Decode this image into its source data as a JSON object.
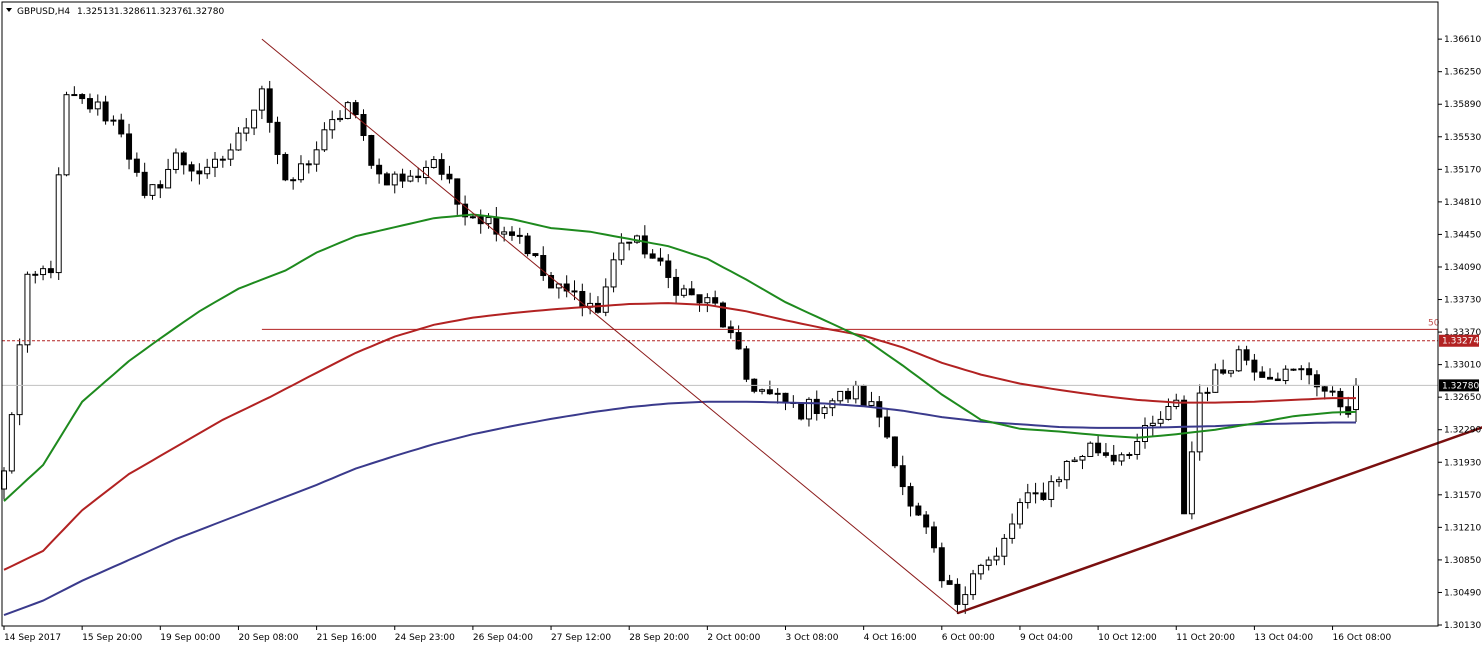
{
  "header": {
    "symbol": "GBPUSD,H4",
    "open": "1.32513",
    "high": "1.32861",
    "low": "1.32376",
    "close": "1.32780"
  },
  "colors": {
    "background": "#ffffff",
    "bull_candle_fill": "#ffffff",
    "bear_candle_fill": "#000000",
    "ema_fast": "#1e8a1e",
    "ema_mid": "#b22222",
    "ema_slow": "#3a3a8c",
    "fibo_line": "#8b1a1a",
    "trendline": "#7a0f0f",
    "level_line": "#b22222",
    "current_price_line": "#c0c0c0",
    "price_tag_bg": "#000000"
  },
  "chart_data": {
    "type": "candlestick",
    "symbol": "GBPUSD",
    "timeframe": "H4",
    "ylim": [
      1.3,
      1.369
    ],
    "grid": false,
    "y_ticks": [
      "1.36610",
      "1.36250",
      "1.35890",
      "1.35530",
      "1.35170",
      "1.34810",
      "1.34450",
      "1.34090",
      "1.33730",
      "1.33370",
      "1.33010",
      "1.32650",
      "1.32290",
      "1.31930",
      "1.31570",
      "1.31210",
      "1.30850",
      "1.30490",
      "1.30130"
    ],
    "x_ticks": [
      {
        "label": "14 Sep 2017",
        "index": 0
      },
      {
        "label": "15 Sep 20:00",
        "index": 10
      },
      {
        "label": "19 Sep 00:00",
        "index": 20
      },
      {
        "label": "20 Sep 08:00",
        "index": 30
      },
      {
        "label": "21 Sep 16:00",
        "index": 40
      },
      {
        "label": "24 Sep 23:00",
        "index": 50
      },
      {
        "label": "26 Sep 04:00",
        "index": 60
      },
      {
        "label": "27 Sep 12:00",
        "index": 70
      },
      {
        "label": "28 Sep 20:00",
        "index": 80
      },
      {
        "label": "2 Oct 00:00",
        "index": 90
      },
      {
        "label": "3 Oct 08:00",
        "index": 100
      },
      {
        "label": "4 Oct 16:00",
        "index": 110
      },
      {
        "label": "6 Oct 00:00",
        "index": 120
      },
      {
        "label": "9 Oct 04:00",
        "index": 130
      },
      {
        "label": "10 Oct 12:00",
        "index": 140
      },
      {
        "label": "11 Oct 20:00",
        "index": 150
      },
      {
        "label": "13 Oct 04:00",
        "index": 160
      },
      {
        "label": "16 Oct 08:00",
        "index": 170
      }
    ],
    "current_price": 1.3278,
    "current_price_label": "1.32780",
    "level_price": 1.33274,
    "level_label": "1.33274",
    "fibo_label": "50",
    "fibo_level": 1.334,
    "fibo_line": [
      {
        "i": 33,
        "p": 1.3661
      },
      {
        "i": 122,
        "p": 1.3027
      }
    ],
    "trendline": [
      {
        "i": 122,
        "p": 1.3026
      },
      {
        "i": 203,
        "p": 1.3274
      }
    ],
    "ema_fast": [
      {
        "i": 0,
        "p": 1.315
      },
      {
        "i": 5,
        "p": 1.319
      },
      {
        "i": 10,
        "p": 1.326
      },
      {
        "i": 16,
        "p": 1.3305
      },
      {
        "i": 20,
        "p": 1.333
      },
      {
        "i": 25,
        "p": 1.336
      },
      {
        "i": 30,
        "p": 1.3385
      },
      {
        "i": 36,
        "p": 1.3405
      },
      {
        "i": 40,
        "p": 1.3425
      },
      {
        "i": 45,
        "p": 1.3443
      },
      {
        "i": 50,
        "p": 1.3453
      },
      {
        "i": 55,
        "p": 1.3463
      },
      {
        "i": 60,
        "p": 1.3467
      },
      {
        "i": 65,
        "p": 1.3462
      },
      {
        "i": 70,
        "p": 1.3452
      },
      {
        "i": 75,
        "p": 1.3448
      },
      {
        "i": 80,
        "p": 1.344
      },
      {
        "i": 85,
        "p": 1.3432
      },
      {
        "i": 90,
        "p": 1.3418
      },
      {
        "i": 95,
        "p": 1.3395
      },
      {
        "i": 100,
        "p": 1.337
      },
      {
        "i": 105,
        "p": 1.335
      },
      {
        "i": 110,
        "p": 1.333
      },
      {
        "i": 115,
        "p": 1.33
      },
      {
        "i": 120,
        "p": 1.3268
      },
      {
        "i": 125,
        "p": 1.324
      },
      {
        "i": 130,
        "p": 1.323
      },
      {
        "i": 135,
        "p": 1.3227
      },
      {
        "i": 140,
        "p": 1.3223
      },
      {
        "i": 145,
        "p": 1.322
      },
      {
        "i": 150,
        "p": 1.3224
      },
      {
        "i": 155,
        "p": 1.3229
      },
      {
        "i": 160,
        "p": 1.3236
      },
      {
        "i": 165,
        "p": 1.3244
      },
      {
        "i": 170,
        "p": 1.3248
      },
      {
        "i": 174,
        "p": 1.3249
      }
    ],
    "ema_mid": [
      {
        "i": 0,
        "p": 1.3074
      },
      {
        "i": 5,
        "p": 1.3095
      },
      {
        "i": 10,
        "p": 1.314
      },
      {
        "i": 16,
        "p": 1.318
      },
      {
        "i": 22,
        "p": 1.321
      },
      {
        "i": 28,
        "p": 1.324
      },
      {
        "i": 34,
        "p": 1.3265
      },
      {
        "i": 40,
        "p": 1.3292
      },
      {
        "i": 45,
        "p": 1.3314
      },
      {
        "i": 50,
        "p": 1.3332
      },
      {
        "i": 55,
        "p": 1.3345
      },
      {
        "i": 60,
        "p": 1.3353
      },
      {
        "i": 65,
        "p": 1.3358
      },
      {
        "i": 70,
        "p": 1.3362
      },
      {
        "i": 75,
        "p": 1.3365
      },
      {
        "i": 80,
        "p": 1.3368
      },
      {
        "i": 85,
        "p": 1.3369
      },
      {
        "i": 90,
        "p": 1.3367
      },
      {
        "i": 95,
        "p": 1.336
      },
      {
        "i": 100,
        "p": 1.335
      },
      {
        "i": 105,
        "p": 1.3341
      },
      {
        "i": 110,
        "p": 1.3333
      },
      {
        "i": 115,
        "p": 1.332
      },
      {
        "i": 120,
        "p": 1.3303
      },
      {
        "i": 125,
        "p": 1.329
      },
      {
        "i": 130,
        "p": 1.328
      },
      {
        "i": 135,
        "p": 1.3273
      },
      {
        "i": 140,
        "p": 1.3267
      },
      {
        "i": 145,
        "p": 1.3262
      },
      {
        "i": 150,
        "p": 1.3259
      },
      {
        "i": 155,
        "p": 1.3259
      },
      {
        "i": 160,
        "p": 1.326
      },
      {
        "i": 165,
        "p": 1.3262
      },
      {
        "i": 170,
        "p": 1.3264
      },
      {
        "i": 174,
        "p": 1.3264
      }
    ],
    "ema_slow": [
      {
        "i": 0,
        "p": 1.3024
      },
      {
        "i": 5,
        "p": 1.304
      },
      {
        "i": 10,
        "p": 1.3062
      },
      {
        "i": 16,
        "p": 1.3085
      },
      {
        "i": 22,
        "p": 1.3108
      },
      {
        "i": 28,
        "p": 1.3128
      },
      {
        "i": 34,
        "p": 1.3148
      },
      {
        "i": 40,
        "p": 1.3168
      },
      {
        "i": 45,
        "p": 1.3186
      },
      {
        "i": 50,
        "p": 1.32
      },
      {
        "i": 55,
        "p": 1.3213
      },
      {
        "i": 60,
        "p": 1.3224
      },
      {
        "i": 65,
        "p": 1.3233
      },
      {
        "i": 70,
        "p": 1.3241
      },
      {
        "i": 75,
        "p": 1.3248
      },
      {
        "i": 80,
        "p": 1.3254
      },
      {
        "i": 85,
        "p": 1.3258
      },
      {
        "i": 90,
        "p": 1.326
      },
      {
        "i": 95,
        "p": 1.326
      },
      {
        "i": 100,
        "p": 1.3259
      },
      {
        "i": 105,
        "p": 1.3258
      },
      {
        "i": 110,
        "p": 1.3255
      },
      {
        "i": 115,
        "p": 1.325
      },
      {
        "i": 120,
        "p": 1.3243
      },
      {
        "i": 125,
        "p": 1.3238
      },
      {
        "i": 130,
        "p": 1.3235
      },
      {
        "i": 135,
        "p": 1.3232
      },
      {
        "i": 140,
        "p": 1.3231
      },
      {
        "i": 145,
        "p": 1.3231
      },
      {
        "i": 150,
        "p": 1.3232
      },
      {
        "i": 155,
        "p": 1.3233
      },
      {
        "i": 160,
        "p": 1.3235
      },
      {
        "i": 165,
        "p": 1.3236
      },
      {
        "i": 170,
        "p": 1.3237
      },
      {
        "i": 174,
        "p": 1.3237
      }
    ],
    "price_anchors": [
      {
        "i": 0,
        "p": 1.318
      },
      {
        "i": 3,
        "p": 1.339
      },
      {
        "i": 6,
        "p": 1.341
      },
      {
        "i": 8,
        "p": 1.3595
      },
      {
        "i": 12,
        "p": 1.3585
      },
      {
        "i": 15,
        "p": 1.3562
      },
      {
        "i": 18,
        "p": 1.348
      },
      {
        "i": 22,
        "p": 1.353
      },
      {
        "i": 26,
        "p": 1.351
      },
      {
        "i": 30,
        "p": 1.355
      },
      {
        "i": 33,
        "p": 1.361
      },
      {
        "i": 36,
        "p": 1.3495
      },
      {
        "i": 40,
        "p": 1.354
      },
      {
        "i": 44,
        "p": 1.359
      },
      {
        "i": 48,
        "p": 1.351
      },
      {
        "i": 52,
        "p": 1.3505
      },
      {
        "i": 55,
        "p": 1.353
      },
      {
        "i": 58,
        "p": 1.348
      },
      {
        "i": 62,
        "p": 1.346
      },
      {
        "i": 66,
        "p": 1.3445
      },
      {
        "i": 70,
        "p": 1.3385
      },
      {
        "i": 74,
        "p": 1.3375
      },
      {
        "i": 76,
        "p": 1.336
      },
      {
        "i": 79,
        "p": 1.344
      },
      {
        "i": 82,
        "p": 1.343
      },
      {
        "i": 85,
        "p": 1.3395
      },
      {
        "i": 88,
        "p": 1.3375
      },
      {
        "i": 91,
        "p": 1.3365
      },
      {
        "i": 93,
        "p": 1.333
      },
      {
        "i": 95,
        "p": 1.3285
      },
      {
        "i": 98,
        "p": 1.3265
      },
      {
        "i": 102,
        "p": 1.325
      },
      {
        "i": 106,
        "p": 1.3262
      },
      {
        "i": 109,
        "p": 1.327
      },
      {
        "i": 112,
        "p": 1.3245
      },
      {
        "i": 114,
        "p": 1.32
      },
      {
        "i": 116,
        "p": 1.314
      },
      {
        "i": 118,
        "p": 1.3115
      },
      {
        "i": 120,
        "p": 1.306
      },
      {
        "i": 122,
        "p": 1.304
      },
      {
        "i": 124,
        "p": 1.3075
      },
      {
        "i": 127,
        "p": 1.3085
      },
      {
        "i": 130,
        "p": 1.3145
      },
      {
        "i": 133,
        "p": 1.316
      },
      {
        "i": 136,
        "p": 1.319
      },
      {
        "i": 139,
        "p": 1.321
      },
      {
        "i": 142,
        "p": 1.32
      },
      {
        "i": 145,
        "p": 1.3215
      },
      {
        "i": 148,
        "p": 1.324
      },
      {
        "i": 150,
        "p": 1.3255
      },
      {
        "i": 151,
        "p": 1.314
      },
      {
        "i": 153,
        "p": 1.327
      },
      {
        "i": 156,
        "p": 1.3295
      },
      {
        "i": 158,
        "p": 1.3315
      },
      {
        "i": 161,
        "p": 1.3295
      },
      {
        "i": 164,
        "p": 1.329
      },
      {
        "i": 167,
        "p": 1.3293
      },
      {
        "i": 170,
        "p": 1.3262
      },
      {
        "i": 172,
        "p": 1.3255
      },
      {
        "i": 173,
        "p": 1.3251
      }
    ],
    "last_bar": {
      "open": 1.32513,
      "high": 1.32861,
      "low": 1.32376,
      "close": 1.3278
    }
  }
}
